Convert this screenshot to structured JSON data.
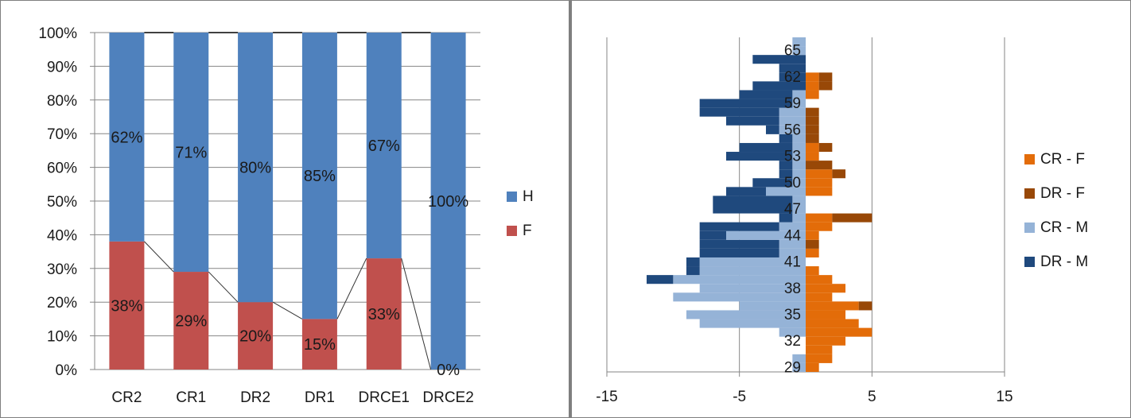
{
  "chart_data": [
    {
      "type": "bar",
      "stacked": true,
      "percent_stacked": true,
      "categories": [
        "CR2",
        "CR1",
        "DR2",
        "DR1",
        "DRCE1",
        "DRCE2"
      ],
      "series": [
        {
          "name": "F",
          "values": [
            38,
            29,
            20,
            15,
            33,
            0
          ],
          "labels": [
            "38%",
            "29%",
            "20%",
            "15%",
            "33%",
            "0%"
          ],
          "color": "#c0504d"
        },
        {
          "name": "H",
          "values": [
            62,
            71,
            80,
            85,
            67,
            100
          ],
          "labels": [
            "62%",
            "71%",
            "80%",
            "85%",
            "67%",
            "100%"
          ],
          "color": "#4f81bd"
        }
      ],
      "series_lines": true,
      "yticks": [
        "0%",
        "10%",
        "20%",
        "30%",
        "40%",
        "50%",
        "60%",
        "70%",
        "80%",
        "90%",
        "100%"
      ],
      "ylim": [
        0,
        100
      ],
      "grid": true,
      "legend": "right"
    },
    {
      "type": "bar",
      "orientation": "horizontal",
      "stacked": true,
      "ages": [
        29,
        30,
        31,
        32,
        33,
        34,
        35,
        36,
        37,
        38,
        39,
        40,
        41,
        42,
        43,
        44,
        45,
        46,
        47,
        48,
        49,
        50,
        51,
        52,
        53,
        54,
        55,
        56,
        57,
        58,
        59,
        60,
        61,
        62,
        63,
        64,
        65,
        66
      ],
      "ytick_labels": [
        "29",
        "32",
        "35",
        "38",
        "41",
        "44",
        "47",
        "50",
        "53",
        "56",
        "59",
        "62",
        "65"
      ],
      "series": [
        {
          "name": "CR - F",
          "color": "#e36c09",
          "values": [
            1,
            2,
            2,
            3,
            5,
            4,
            3,
            4,
            2,
            3,
            2,
            1,
            0,
            1,
            0,
            1,
            2,
            2,
            0,
            0,
            2,
            2,
            2,
            0,
            1,
            1,
            0,
            0,
            0,
            0,
            0,
            1,
            1,
            1,
            0,
            0,
            0,
            0
          ]
        },
        {
          "name": "DR - F",
          "color": "#984807",
          "values": [
            0,
            0,
            0,
            0,
            0,
            0,
            0,
            1,
            0,
            0,
            0,
            0,
            0,
            0,
            1,
            0,
            0,
            3,
            0,
            0,
            0,
            0,
            1,
            2,
            0,
            1,
            1,
            1,
            1,
            1,
            0,
            0,
            1,
            1,
            0,
            0,
            0,
            0
          ]
        },
        {
          "name": "CR - M",
          "color": "#95b3d7",
          "values": [
            -1,
            -1,
            0,
            0,
            -2,
            -8,
            -9,
            -5,
            -10,
            -8,
            -10,
            -8,
            -8,
            -2,
            -2,
            -6,
            -2,
            -1,
            -1,
            -1,
            -3,
            -1,
            -1,
            -1,
            -1,
            -1,
            -1,
            -2,
            -2,
            -2,
            -1,
            -1,
            0,
            0,
            0,
            0,
            -1,
            -1
          ]
        },
        {
          "name": "DR - M",
          "color": "#1f497d",
          "values": [
            0,
            0,
            0,
            0,
            0,
            0,
            0,
            0,
            0,
            0,
            -2,
            -1,
            -1,
            -6,
            -6,
            -2,
            -6,
            -1,
            -6,
            -6,
            -3,
            -3,
            -1,
            -1,
            -5,
            -4,
            -1,
            -1,
            -4,
            -6,
            -7,
            -4,
            -4,
            -2,
            -2,
            -4,
            0,
            0
          ]
        }
      ],
      "xticks": [
        "-15",
        "-5",
        "5",
        "15"
      ],
      "xlim": [
        -15,
        15
      ],
      "grid": true,
      "legend": "right"
    }
  ]
}
